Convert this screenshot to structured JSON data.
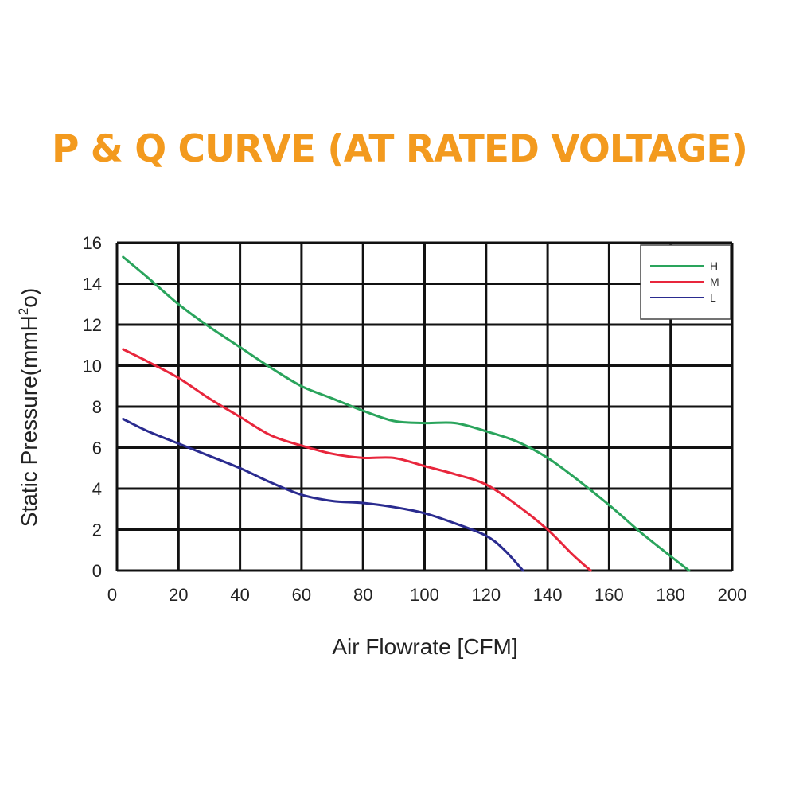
{
  "chart_data": {
    "type": "line",
    "title": "P & Q CURVE (AT RATED VOLTAGE)",
    "xlabel": "Air  Flowrate   [CFM]",
    "ylabel_main": "Static Pressure(mmH",
    "ylabel_sup": "2",
    "ylabel_end": "o)",
    "xlim": [
      0,
      200
    ],
    "ylim": [
      0,
      16
    ],
    "xticks": [
      "0",
      "20",
      "40",
      "60",
      "80",
      "100",
      "120",
      "140",
      "160",
      "180",
      "200"
    ],
    "yticks": [
      "0",
      "2",
      "4",
      "6",
      "8",
      "10",
      "12",
      "14",
      "16"
    ],
    "grid": true,
    "legend_position": "top-right",
    "series": [
      {
        "name": "H",
        "color": "#2aa45c",
        "x": [
          2,
          10,
          20,
          30,
          40,
          50,
          60,
          70,
          80,
          90,
          100,
          110,
          120,
          130,
          140,
          150,
          160,
          170,
          180,
          186
        ],
        "y": [
          15.3,
          14.3,
          13.0,
          11.9,
          10.9,
          9.9,
          9.0,
          8.4,
          7.8,
          7.3,
          7.2,
          7.2,
          6.8,
          6.3,
          5.5,
          4.4,
          3.2,
          1.9,
          0.7,
          0.0
        ]
      },
      {
        "name": "M",
        "color": "#e8263c",
        "x": [
          2,
          10,
          20,
          30,
          40,
          50,
          60,
          70,
          80,
          90,
          100,
          110,
          120,
          130,
          140,
          148,
          154
        ],
        "y": [
          10.8,
          10.2,
          9.4,
          8.4,
          7.5,
          6.6,
          6.1,
          5.7,
          5.5,
          5.5,
          5.1,
          4.7,
          4.2,
          3.2,
          2.0,
          0.8,
          0.0
        ]
      },
      {
        "name": "L",
        "color": "#2a2b8f",
        "x": [
          2,
          10,
          20,
          30,
          40,
          50,
          60,
          70,
          80,
          90,
          100,
          110,
          120,
          126,
          132
        ],
        "y": [
          7.4,
          6.8,
          6.2,
          5.6,
          5.0,
          4.3,
          3.7,
          3.4,
          3.3,
          3.1,
          2.8,
          2.3,
          1.7,
          1.0,
          0.0
        ]
      }
    ]
  }
}
